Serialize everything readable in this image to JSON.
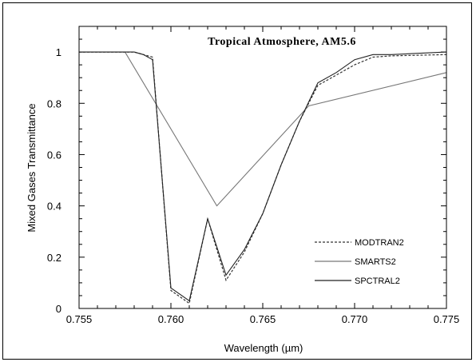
{
  "chart_data": {
    "type": "line",
    "title": "Tropical Atmosphere,  AM5.6",
    "xlabel": "Wavelength (µm)",
    "ylabel": "Mixed Gases Transmittance",
    "xlim": [
      0.755,
      0.775
    ],
    "ylim": [
      0,
      1.1
    ],
    "xticks": [
      0.755,
      0.76,
      0.765,
      0.77,
      0.775
    ],
    "xtick_labels": [
      "0.755",
      "0.760",
      "0.765",
      "0.770",
      "0.775"
    ],
    "yticks": [
      0,
      0.2,
      0.4,
      0.6,
      0.8,
      1
    ],
    "ytick_labels": [
      "0",
      "0.2",
      "0.4",
      "0.6",
      "0.8",
      "1"
    ],
    "grid": false,
    "legend_position": "bottom-right",
    "series": [
      {
        "name": "MODTRAN2",
        "style": "dotted",
        "color": "#333333",
        "x": [
          0.755,
          0.758,
          0.7585,
          0.759,
          0.76,
          0.761,
          0.762,
          0.763,
          0.764,
          0.765,
          0.766,
          0.767,
          0.768,
          0.769,
          0.77,
          0.771,
          0.772,
          0.775
        ],
        "y": [
          1.0,
          1.0,
          0.99,
          0.98,
          0.07,
          0.02,
          0.35,
          0.11,
          0.22,
          0.37,
          0.56,
          0.73,
          0.87,
          0.91,
          0.95,
          0.98,
          0.985,
          0.99
        ]
      },
      {
        "name": "SMARTS2",
        "style": "solid",
        "color": "#777777",
        "x": [
          0.755,
          0.7575,
          0.7625,
          0.7675,
          0.775
        ],
        "y": [
          1.0,
          1.0,
          0.4,
          0.79,
          0.92
        ]
      },
      {
        "name": "SPCTRAL2",
        "style": "solid",
        "color": "#222222",
        "x": [
          0.755,
          0.758,
          0.7585,
          0.759,
          0.76,
          0.761,
          0.762,
          0.763,
          0.764,
          0.765,
          0.766,
          0.767,
          0.768,
          0.769,
          0.77,
          0.771,
          0.772,
          0.775
        ],
        "y": [
          1.0,
          1.0,
          0.99,
          0.97,
          0.08,
          0.03,
          0.35,
          0.13,
          0.23,
          0.37,
          0.56,
          0.73,
          0.88,
          0.92,
          0.97,
          0.99,
          0.99,
          1.0
        ]
      }
    ]
  }
}
